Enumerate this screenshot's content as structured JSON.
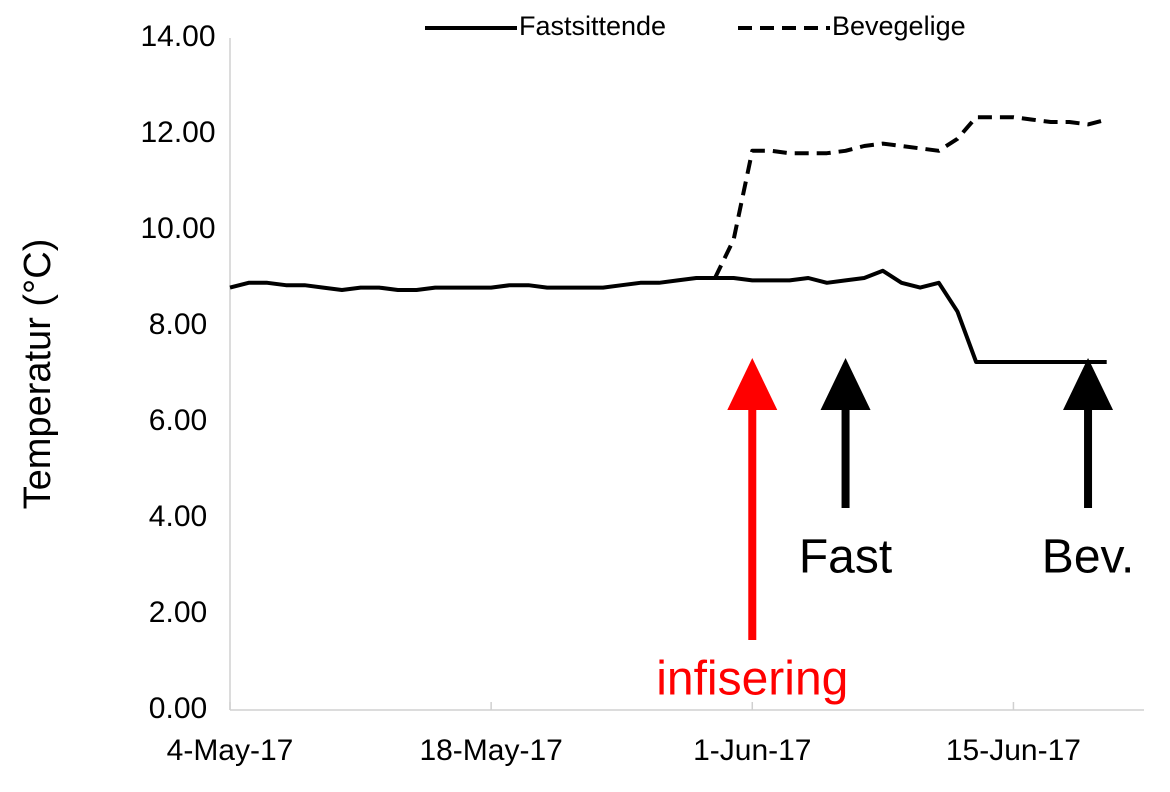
{
  "chart_data": {
    "type": "line",
    "y_label": "Temperatur (°C)",
    "x": [
      "2017-05-04",
      "2017-05-05",
      "2017-05-06",
      "2017-05-07",
      "2017-05-08",
      "2017-05-09",
      "2017-05-10",
      "2017-05-11",
      "2017-05-12",
      "2017-05-13",
      "2017-05-14",
      "2017-05-15",
      "2017-05-16",
      "2017-05-17",
      "2017-05-18",
      "2017-05-19",
      "2017-05-20",
      "2017-05-21",
      "2017-05-22",
      "2017-05-23",
      "2017-05-24",
      "2017-05-25",
      "2017-05-26",
      "2017-05-27",
      "2017-05-28",
      "2017-05-29",
      "2017-05-30",
      "2017-05-31",
      "2017-06-01",
      "2017-06-02",
      "2017-06-03",
      "2017-06-04",
      "2017-06-05",
      "2017-06-06",
      "2017-06-07",
      "2017-06-08",
      "2017-06-09",
      "2017-06-10",
      "2017-06-11",
      "2017-06-12",
      "2017-06-13",
      "2017-06-14",
      "2017-06-15",
      "2017-06-16",
      "2017-06-17",
      "2017-06-18",
      "2017-06-19",
      "2017-06-20"
    ],
    "series": [
      {
        "name": "Fastsittende",
        "color": "#000000",
        "dash": false,
        "values": [
          8.8,
          8.9,
          8.9,
          8.85,
          8.85,
          8.8,
          8.75,
          8.8,
          8.8,
          8.75,
          8.75,
          8.8,
          8.8,
          8.8,
          8.8,
          8.85,
          8.85,
          8.8,
          8.8,
          8.8,
          8.8,
          8.85,
          8.9,
          8.9,
          8.95,
          9.0,
          9.0,
          9.0,
          8.95,
          8.95,
          8.95,
          9.0,
          8.9,
          8.95,
          9.0,
          9.15,
          8.9,
          8.8,
          8.9,
          8.3,
          7.25,
          7.25,
          7.25,
          7.25,
          7.25,
          7.25,
          7.25,
          7.25
        ]
      },
      {
        "name": "Bevegelige",
        "color": "#000000",
        "dash": true,
        "values": [
          null,
          null,
          null,
          null,
          null,
          null,
          null,
          null,
          null,
          null,
          null,
          null,
          null,
          null,
          null,
          null,
          null,
          null,
          null,
          null,
          null,
          null,
          null,
          null,
          null,
          null,
          9.0,
          9.8,
          11.65,
          11.65,
          11.6,
          11.6,
          11.6,
          11.65,
          11.75,
          11.8,
          11.75,
          11.7,
          11.65,
          11.9,
          12.35,
          12.35,
          12.35,
          12.3,
          12.25,
          12.25,
          12.2,
          12.3
        ]
      }
    ],
    "xlim": [
      "2017-05-04",
      "2017-06-22"
    ],
    "xticks": [
      {
        "value": "2017-05-04",
        "label": "4-May-17"
      },
      {
        "value": "2017-05-18",
        "label": "18-May-17"
      },
      {
        "value": "2017-06-01",
        "label": "1-Jun-17"
      },
      {
        "value": "2017-06-15",
        "label": "15-Jun-17"
      }
    ],
    "ylim": [
      0,
      14
    ],
    "yticks": [
      {
        "value": 0,
        "label": "0.00"
      },
      {
        "value": 2,
        "label": "2.00"
      },
      {
        "value": 4,
        "label": "4.00"
      },
      {
        "value": 6,
        "label": "6.00"
      },
      {
        "value": 8,
        "label": "8.00"
      },
      {
        "value": 10,
        "label": "10.00"
      },
      {
        "value": 12,
        "label": "12.00"
      },
      {
        "value": 14,
        "label": "14.00"
      }
    ],
    "legend": "top",
    "annotations": [
      {
        "text": "infisering",
        "x": "2017-06-01",
        "color": "#ff0000"
      },
      {
        "text": "Fast",
        "x": "2017-06-06",
        "color": "#000000"
      },
      {
        "text": "Bev.",
        "x": "2017-06-19",
        "color": "#000000"
      }
    ]
  }
}
